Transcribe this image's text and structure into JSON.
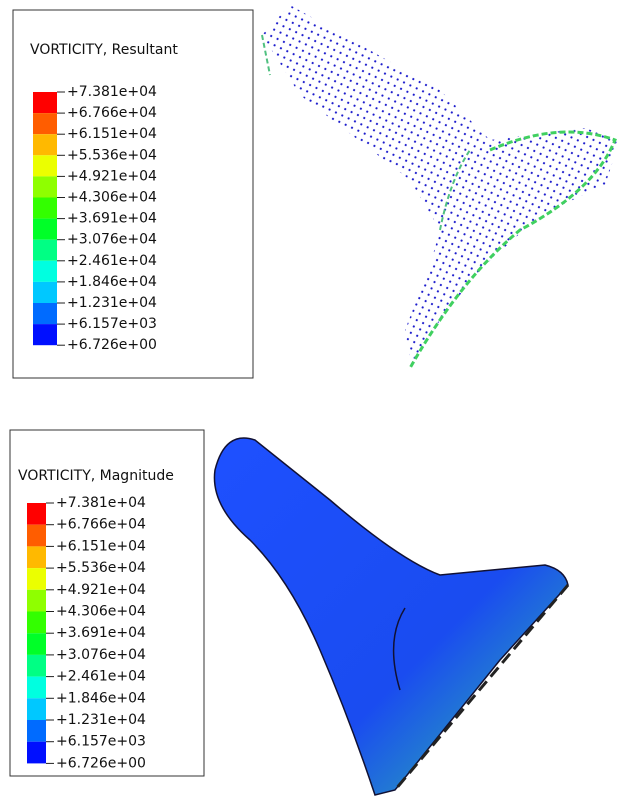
{
  "panels": [
    {
      "title": "VORTICITY, Resultant",
      "labels": [
        "+7.381e+04",
        "+6.766e+04",
        "+6.151e+04",
        "+5.536e+04",
        "+4.921e+04",
        "+4.306e+04",
        "+3.691e+04",
        "+3.076e+04",
        "+2.461e+04",
        "+1.846e+04",
        "+1.231e+04",
        "+6.157e+03",
        "+6.726e+00"
      ]
    },
    {
      "title": "VORTICITY, Magnitude",
      "labels": [
        "+7.381e+04",
        "+6.766e+04",
        "+6.151e+04",
        "+5.536e+04",
        "+4.921e+04",
        "+4.306e+04",
        "+3.691e+04",
        "+3.076e+04",
        "+2.461e+04",
        "+1.846e+04",
        "+1.231e+04",
        "+6.157e+03",
        "+6.726e+00"
      ]
    }
  ]
}
